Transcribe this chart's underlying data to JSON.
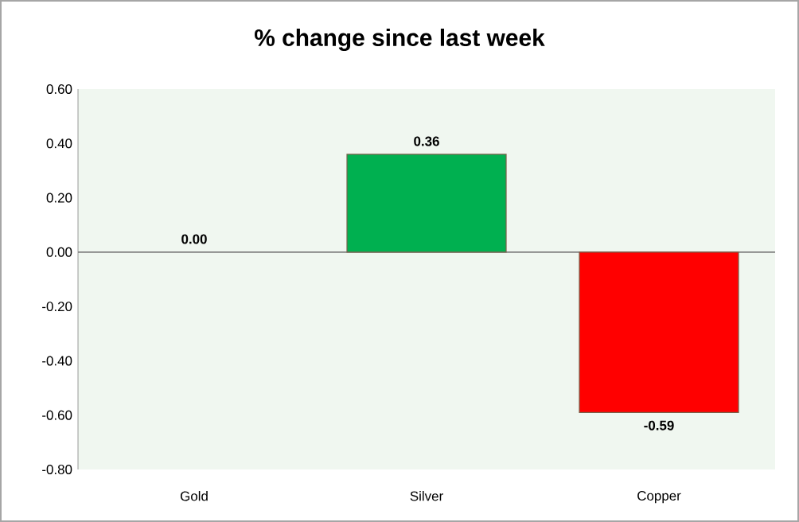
{
  "chart_data": {
    "type": "bar",
    "title": "% change since last week",
    "categories": [
      "Gold",
      "Silver",
      "Copper"
    ],
    "values": [
      0,
      0.36,
      -0.59
    ],
    "colors": [
      "#ffc000",
      "#00b050",
      "#ff0000"
    ],
    "value_labels": [
      "0.00",
      "0.36",
      "-0.59"
    ],
    "ylim": [
      -0.8,
      0.6
    ],
    "yticks": [
      {
        "value": -0.8,
        "label": "-0.80"
      },
      {
        "value": -0.6,
        "label": "-0.60"
      },
      {
        "value": -0.4,
        "label": "-0.40"
      },
      {
        "value": -0.2,
        "label": "-0.20"
      },
      {
        "value": 0,
        "label": "0.00"
      },
      {
        "value": 0.2,
        "label": "0.20"
      },
      {
        "value": 0.4,
        "label": "0.40"
      },
      {
        "value": 0.6,
        "label": "0.60"
      }
    ]
  }
}
